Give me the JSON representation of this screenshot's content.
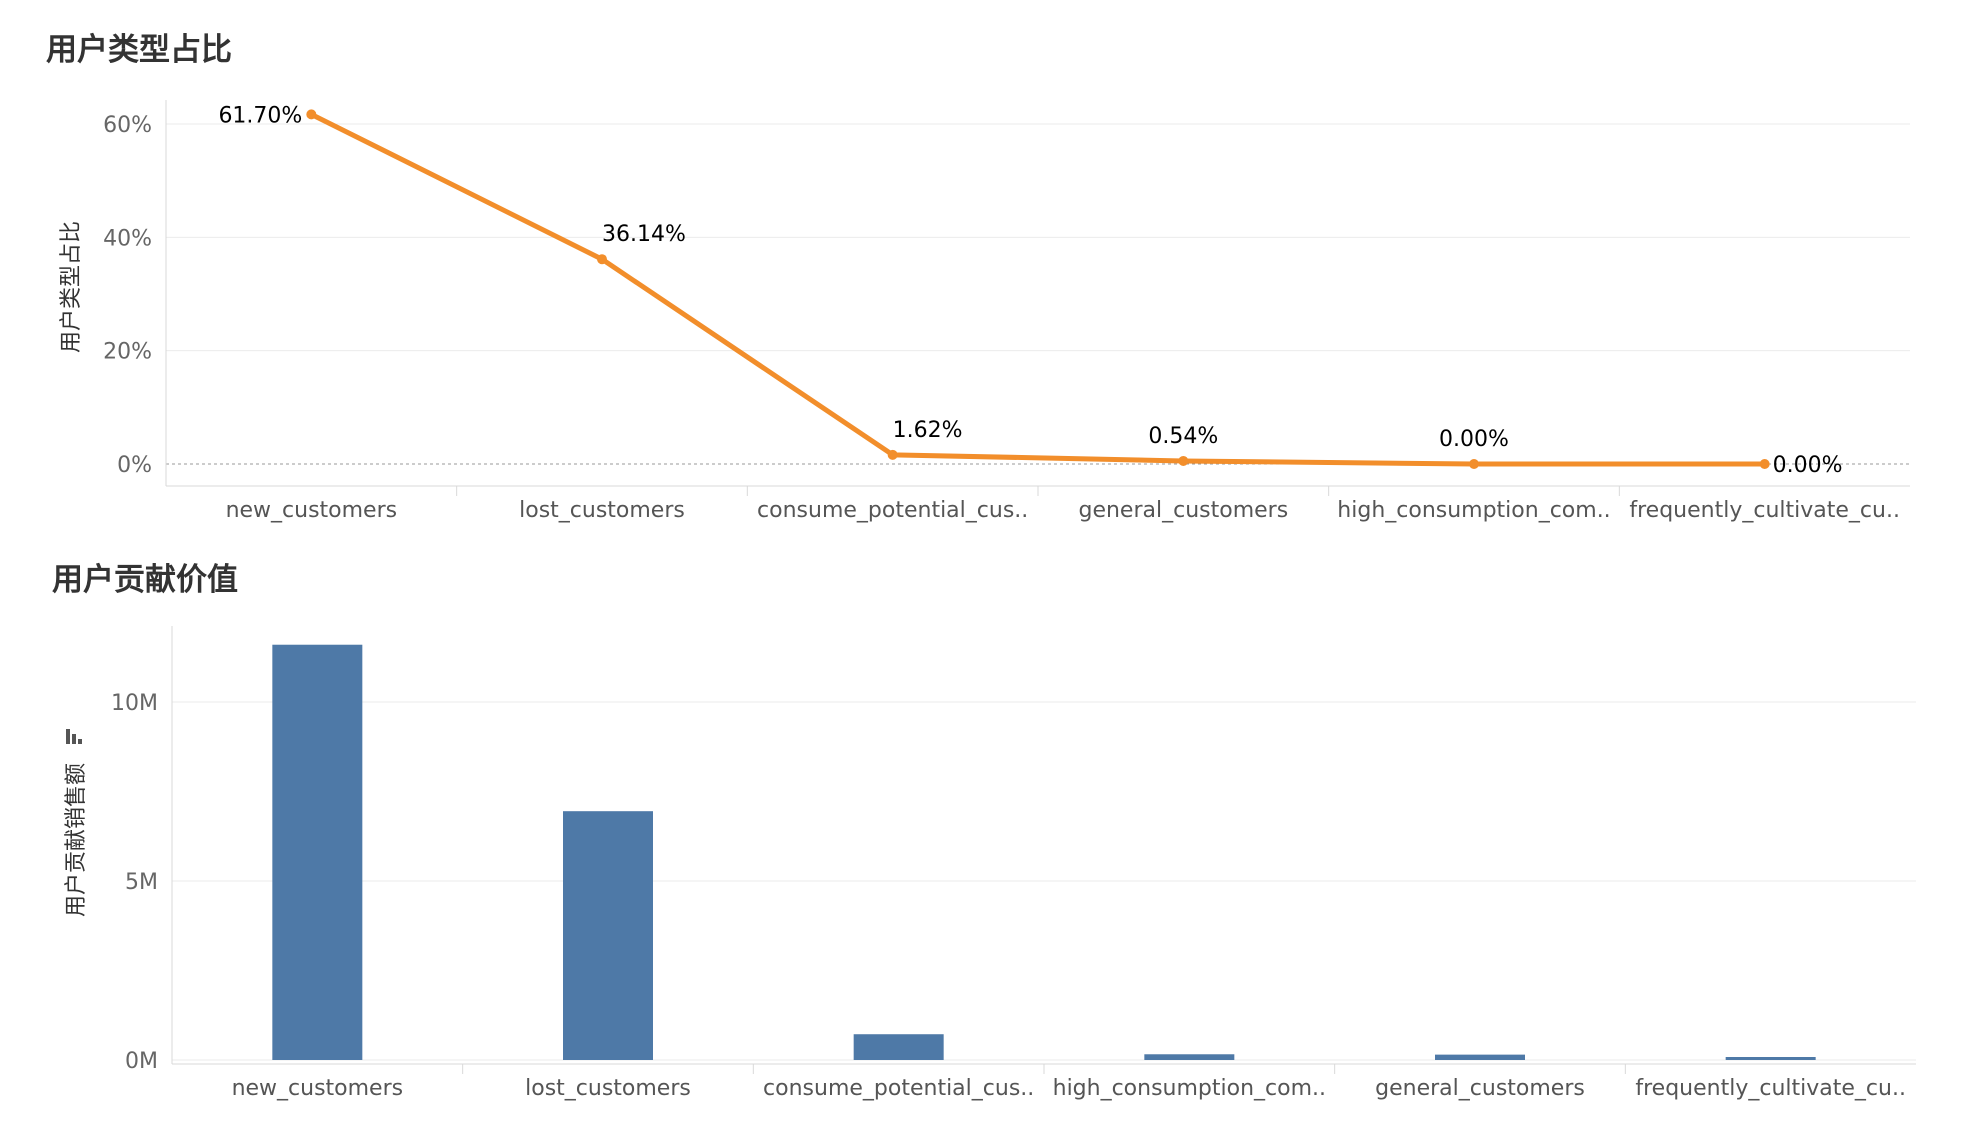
{
  "chart_data": [
    {
      "type": "line",
      "title": "用户类型占比",
      "ylabel": "用户类型占比",
      "xlabel": "",
      "categories": [
        "new_customers",
        "lost_customers",
        "consume_potential_cus..",
        "general_customers",
        "high_consumption_com..",
        "frequently_cultivate_cu.."
      ],
      "values": [
        61.7,
        36.14,
        1.62,
        0.54,
        0.0,
        0.0
      ],
      "data_labels": [
        "61.70%",
        "36.14%",
        "1.62%",
        "0.54%",
        "0.00%",
        "0.00%"
      ],
      "ylim": [
        0,
        62
      ],
      "yticks": [
        0,
        20,
        40,
        60
      ],
      "ytick_labels": [
        "0%",
        "20%",
        "40%",
        "60%"
      ],
      "grid": true,
      "color": "#f28e2b"
    },
    {
      "type": "bar",
      "title": "用户贡献价值",
      "ylabel": "用户贡献销售额",
      "xlabel": "",
      "categories": [
        "new_customers",
        "lost_customers",
        "consume_potential_cus..",
        "high_consumption_com..",
        "general_customers",
        "frequently_cultivate_cu.."
      ],
      "values": [
        11600000,
        6950000,
        720000,
        160000,
        150000,
        60000
      ],
      "ylim": [
        0,
        12000000
      ],
      "yticks": [
        0,
        5000000,
        10000000
      ],
      "ytick_labels": [
        "0M",
        "5M",
        "10M"
      ],
      "grid": true,
      "color": "#4e79a7"
    }
  ]
}
